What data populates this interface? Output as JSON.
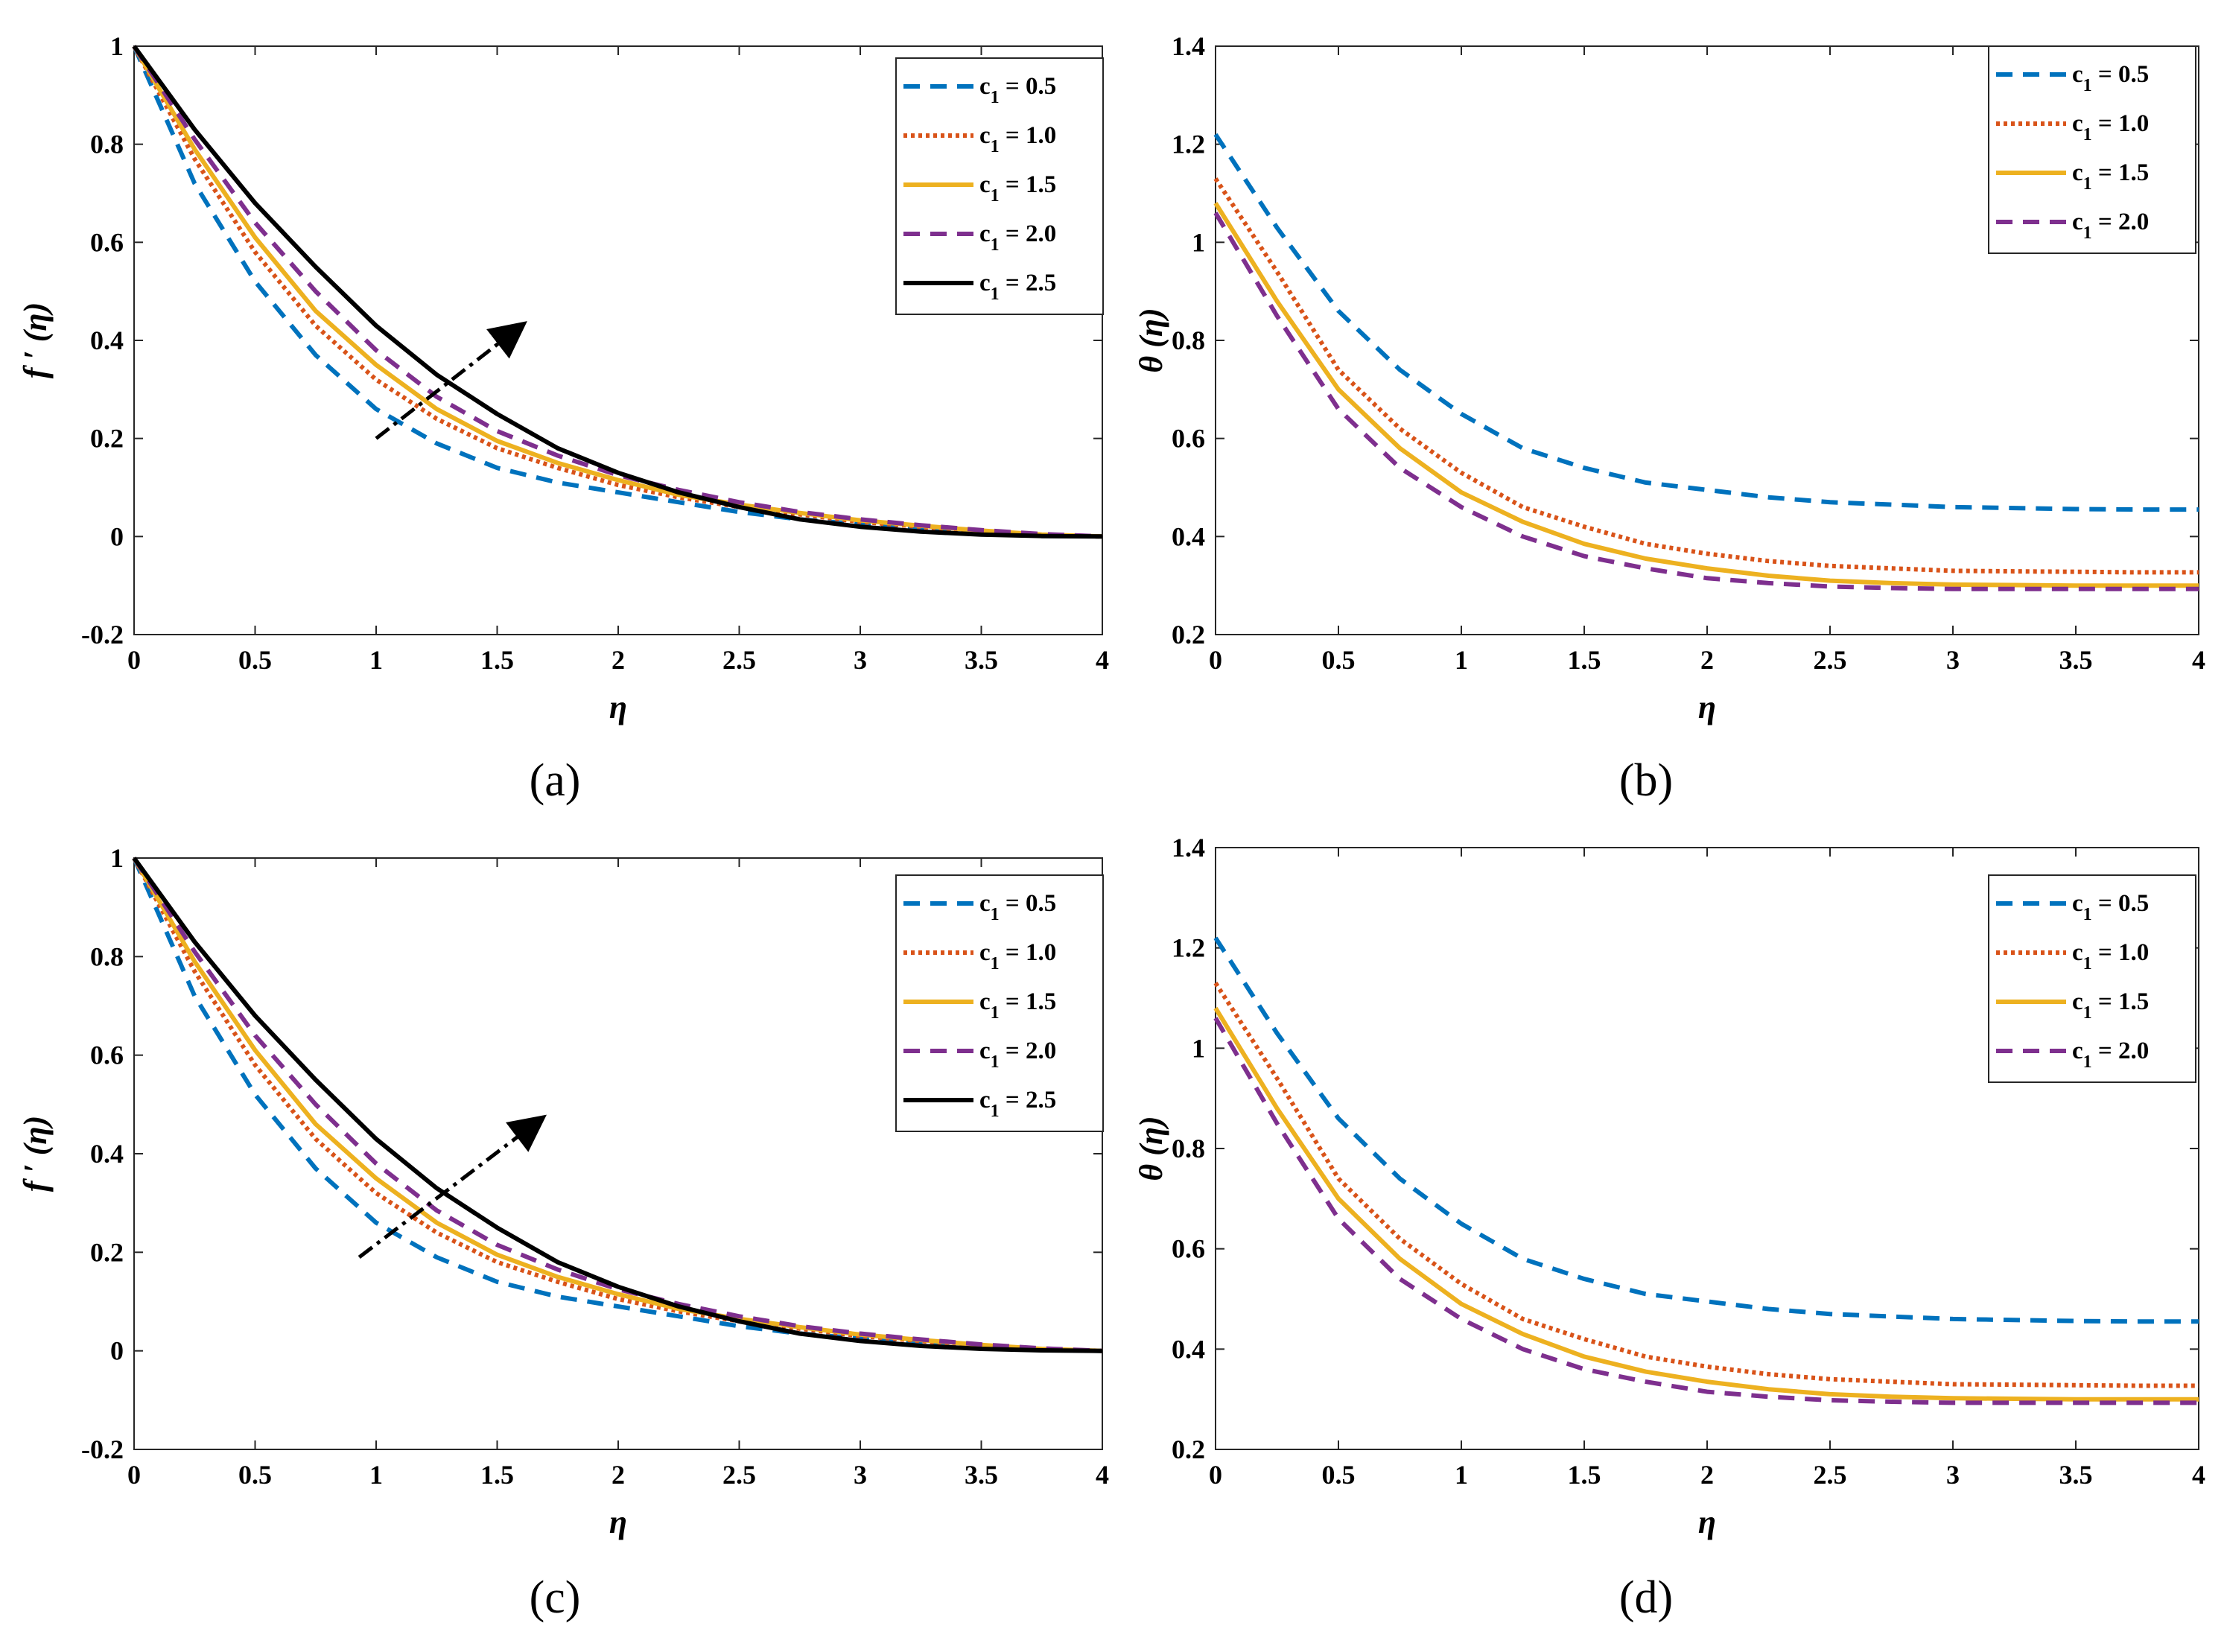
{
  "colors": {
    "c1_0_5": "#0072BD",
    "c1_1_0": "#D95319",
    "c1_1_5": "#EDB120",
    "c1_2_0": "#7E2F8E",
    "c1_2_5": "#000000"
  },
  "chart_data": [
    {
      "type": "line",
      "caption": "(a)",
      "xlabel": "η",
      "ylabel": "f ′ (η)",
      "xlim": [
        0,
        4
      ],
      "ylim": [
        -0.2,
        1
      ],
      "xticks": [
        "0",
        "0.5",
        "1",
        "1.5",
        "2",
        "2.5",
        "3",
        "3.5",
        "4"
      ],
      "yticks": [
        "-0.2",
        "0",
        "0.2",
        "0.4",
        "0.6",
        "0.8",
        "1"
      ],
      "legend_position": "top-right",
      "x": [
        0,
        0.25,
        0.5,
        0.75,
        1,
        1.25,
        1.5,
        1.75,
        2,
        2.25,
        2.5,
        2.75,
        3,
        3.25,
        3.5,
        3.75,
        4
      ],
      "series": [
        {
          "name": "c1 = 0.5",
          "sub": "1",
          "pre": "c",
          "post": " = 0.5",
          "style": "dashed",
          "color_key": "c1_0_5",
          "values": [
            1,
            0.72,
            0.52,
            0.37,
            0.26,
            0.19,
            0.14,
            0.11,
            0.09,
            0.07,
            0.05,
            0.035,
            0.025,
            0.015,
            0.008,
            0.002,
            0
          ]
        },
        {
          "name": "c1 = 1.0",
          "sub": "1",
          "pre": "c",
          "post": " = 1.0",
          "style": "dotted",
          "color_key": "c1_1_0",
          "values": [
            1,
            0.77,
            0.58,
            0.43,
            0.32,
            0.24,
            0.18,
            0.14,
            0.105,
            0.08,
            0.06,
            0.045,
            0.03,
            0.02,
            0.01,
            0.003,
            0
          ]
        },
        {
          "name": "c1 = 1.5",
          "sub": "1",
          "pre": "c",
          "post": " = 1.5",
          "style": "solid",
          "color_key": "c1_1_5",
          "values": [
            1,
            0.79,
            0.61,
            0.46,
            0.35,
            0.26,
            0.195,
            0.15,
            0.115,
            0.085,
            0.065,
            0.048,
            0.033,
            0.022,
            0.012,
            0.004,
            0
          ]
        },
        {
          "name": "c1 = 2.0",
          "sub": "1",
          "pre": "c",
          "post": " = 2.0",
          "style": "dashed",
          "color_key": "c1_2_0",
          "values": [
            1,
            0.81,
            0.64,
            0.5,
            0.38,
            0.285,
            0.215,
            0.165,
            0.125,
            0.095,
            0.07,
            0.05,
            0.035,
            0.023,
            0.013,
            0.005,
            0
          ]
        },
        {
          "name": "c1 = 2.5",
          "sub": "1",
          "pre": "c",
          "post": " = 2.5",
          "style": "solid",
          "color_key": "c1_2_5",
          "values": [
            1,
            0.83,
            0.68,
            0.55,
            0.43,
            0.33,
            0.25,
            0.18,
            0.13,
            0.09,
            0.06,
            0.035,
            0.02,
            0.01,
            0.004,
            0.001,
            0
          ]
        }
      ],
      "arrow": {
        "from": [
          1,
          0.2
        ],
        "to": [
          1.6,
          0.43
        ]
      }
    },
    {
      "type": "line",
      "caption": "(b)",
      "xlabel": "η",
      "ylabel": "θ (η)",
      "xlim": [
        0,
        4
      ],
      "ylim": [
        0.2,
        1.4
      ],
      "xticks": [
        "0",
        "0.5",
        "1",
        "1.5",
        "2",
        "2.5",
        "3",
        "3.5",
        "4"
      ],
      "yticks": [
        "0.2",
        "0.4",
        "0.6",
        "0.8",
        "1",
        "1.2",
        "1.4"
      ],
      "legend_position": "top-right",
      "x": [
        0,
        0.25,
        0.5,
        0.75,
        1,
        1.25,
        1.5,
        1.75,
        2,
        2.25,
        2.5,
        2.75,
        3,
        3.25,
        3.5,
        3.75,
        4
      ],
      "series": [
        {
          "name": "c1 = 0.5",
          "sub": "1",
          "pre": "c",
          "post": " = 0.5",
          "style": "dashed",
          "color_key": "c1_0_5",
          "values": [
            1.22,
            1.03,
            0.86,
            0.74,
            0.65,
            0.58,
            0.54,
            0.51,
            0.495,
            0.48,
            0.47,
            0.465,
            0.46,
            0.458,
            0.456,
            0.455,
            0.455
          ]
        },
        {
          "name": "c1 = 1.0",
          "sub": "1",
          "pre": "c",
          "post": " = 1.0",
          "style": "dotted",
          "color_key": "c1_1_0",
          "values": [
            1.13,
            0.94,
            0.74,
            0.62,
            0.53,
            0.46,
            0.42,
            0.385,
            0.365,
            0.35,
            0.34,
            0.335,
            0.33,
            0.329,
            0.328,
            0.327,
            0.327
          ]
        },
        {
          "name": "c1 = 1.5",
          "sub": "1",
          "pre": "c",
          "post": " = 1.5",
          "style": "solid",
          "color_key": "c1_1_5",
          "values": [
            1.08,
            0.88,
            0.7,
            0.58,
            0.49,
            0.43,
            0.385,
            0.355,
            0.335,
            0.32,
            0.31,
            0.305,
            0.302,
            0.301,
            0.3,
            0.3,
            0.3
          ]
        },
        {
          "name": "c1 = 2.0",
          "sub": "1",
          "pre": "c",
          "post": " = 2.0",
          "style": "dashed",
          "color_key": "c1_2_0",
          "values": [
            1.06,
            0.85,
            0.66,
            0.54,
            0.46,
            0.4,
            0.36,
            0.335,
            0.315,
            0.305,
            0.298,
            0.295,
            0.293,
            0.293,
            0.293,
            0.293,
            0.293
          ]
        }
      ]
    },
    {
      "type": "line",
      "caption": "(c)",
      "xlabel": "η",
      "ylabel": "f ′ (η)",
      "xlim": [
        0,
        4
      ],
      "ylim": [
        -0.2,
        1
      ],
      "xticks": [
        "0",
        "0.5",
        "1",
        "1.5",
        "2",
        "2.5",
        "3",
        "3.5",
        "4"
      ],
      "yticks": [
        "-0.2",
        "0",
        "0.2",
        "0.4",
        "0.6",
        "0.8",
        "1"
      ],
      "legend_position": "top-right",
      "x": [
        0,
        0.25,
        0.5,
        0.75,
        1,
        1.25,
        1.5,
        1.75,
        2,
        2.25,
        2.5,
        2.75,
        3,
        3.25,
        3.5,
        3.75,
        4
      ],
      "series": [
        {
          "name": "c1 = 0.5",
          "sub": "1",
          "pre": "c",
          "post": " = 0.5",
          "style": "dashed",
          "color_key": "c1_0_5",
          "values": [
            1,
            0.72,
            0.52,
            0.37,
            0.26,
            0.19,
            0.14,
            0.11,
            0.09,
            0.07,
            0.05,
            0.035,
            0.025,
            0.015,
            0.008,
            0.002,
            0
          ]
        },
        {
          "name": "c1 = 1.0",
          "sub": "1",
          "pre": "c",
          "post": " = 1.0",
          "style": "dotted",
          "color_key": "c1_1_0",
          "values": [
            1,
            0.77,
            0.58,
            0.43,
            0.32,
            0.24,
            0.18,
            0.14,
            0.105,
            0.08,
            0.06,
            0.045,
            0.03,
            0.02,
            0.01,
            0.003,
            0
          ]
        },
        {
          "name": "c1 = 1.5",
          "sub": "1",
          "pre": "c",
          "post": " = 1.5",
          "style": "solid",
          "color_key": "c1_1_5",
          "values": [
            1,
            0.79,
            0.61,
            0.46,
            0.35,
            0.26,
            0.195,
            0.15,
            0.115,
            0.085,
            0.065,
            0.048,
            0.033,
            0.022,
            0.012,
            0.004,
            0
          ]
        },
        {
          "name": "c1 = 2.0",
          "sub": "1",
          "pre": "c",
          "post": " = 2.0",
          "style": "dashed",
          "color_key": "c1_2_0",
          "values": [
            1,
            0.81,
            0.64,
            0.5,
            0.38,
            0.285,
            0.215,
            0.165,
            0.125,
            0.095,
            0.07,
            0.05,
            0.035,
            0.023,
            0.013,
            0.005,
            0
          ]
        },
        {
          "name": "c1 = 2.5",
          "sub": "1",
          "pre": "c",
          "post": " = 2.5",
          "style": "solid",
          "color_key": "c1_2_5",
          "values": [
            1,
            0.83,
            0.68,
            0.55,
            0.43,
            0.33,
            0.25,
            0.18,
            0.13,
            0.09,
            0.06,
            0.035,
            0.02,
            0.01,
            0.004,
            0.001,
            0
          ]
        }
      ],
      "arrow": {
        "from": [
          0.93,
          0.19
        ],
        "to": [
          1.68,
          0.47
        ]
      }
    },
    {
      "type": "line",
      "caption": "(d)",
      "xlabel": "η",
      "ylabel": "θ (η)",
      "xlim": [
        0,
        4
      ],
      "ylim": [
        0.2,
        1.4
      ],
      "xticks": [
        "0",
        "0.5",
        "1",
        "1.5",
        "2",
        "2.5",
        "3",
        "3.5",
        "4"
      ],
      "yticks": [
        "0.2",
        "0.4",
        "0.6",
        "0.8",
        "1",
        "1.2",
        "1.4"
      ],
      "legend_position": "top-right",
      "x": [
        0,
        0.25,
        0.5,
        0.75,
        1,
        1.25,
        1.5,
        1.75,
        2,
        2.25,
        2.5,
        2.75,
        3,
        3.25,
        3.5,
        3.75,
        4
      ],
      "series": [
        {
          "name": "c1 = 0.5",
          "sub": "1",
          "pre": "c",
          "post": " = 0.5",
          "style": "dashed",
          "color_key": "c1_0_5",
          "values": [
            1.22,
            1.03,
            0.86,
            0.74,
            0.65,
            0.58,
            0.54,
            0.51,
            0.495,
            0.48,
            0.47,
            0.465,
            0.46,
            0.458,
            0.456,
            0.455,
            0.455
          ]
        },
        {
          "name": "c1 = 1.0",
          "sub": "1",
          "pre": "c",
          "post": " = 1.0",
          "style": "dotted",
          "color_key": "c1_1_0",
          "values": [
            1.13,
            0.94,
            0.74,
            0.62,
            0.53,
            0.46,
            0.42,
            0.385,
            0.365,
            0.35,
            0.34,
            0.335,
            0.33,
            0.329,
            0.328,
            0.327,
            0.327
          ]
        },
        {
          "name": "c1 = 1.5",
          "sub": "1",
          "pre": "c",
          "post": " = 1.5",
          "style": "solid",
          "color_key": "c1_1_5",
          "values": [
            1.08,
            0.88,
            0.7,
            0.58,
            0.49,
            0.43,
            0.385,
            0.355,
            0.335,
            0.32,
            0.31,
            0.305,
            0.302,
            0.301,
            0.3,
            0.3,
            0.3
          ]
        },
        {
          "name": "c1 = 2.0",
          "sub": "1",
          "pre": "c",
          "post": " = 2.0",
          "style": "dashed",
          "color_key": "c1_2_0",
          "values": [
            1.06,
            0.85,
            0.66,
            0.54,
            0.46,
            0.4,
            0.36,
            0.335,
            0.315,
            0.305,
            0.298,
            0.295,
            0.293,
            0.293,
            0.293,
            0.293,
            0.293
          ]
        }
      ]
    }
  ]
}
